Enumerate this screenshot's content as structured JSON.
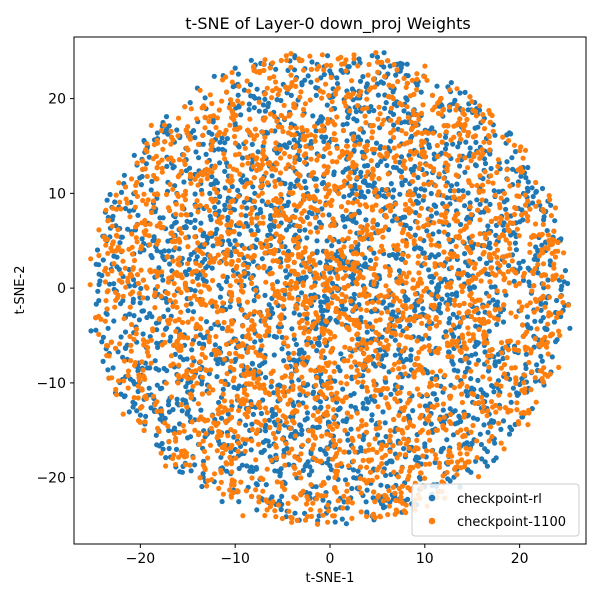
{
  "chart_data": {
    "type": "scatter",
    "title": "t-SNE of Layer-0 down_proj Weights",
    "xlabel": "t-SNE-1",
    "ylabel": "t-SNE-2",
    "xlim": [
      -27,
      27
    ],
    "ylim": [
      -27,
      26.5
    ],
    "xticks": [
      -20,
      -10,
      0,
      10,
      20
    ],
    "yticks": [
      -20,
      -10,
      0,
      10,
      20
    ],
    "grid": false,
    "legend_position": "lower-right",
    "series": [
      {
        "name": "checkpoint-rl",
        "color": "#1f77b4",
        "approx_point_count": 3000,
        "distribution": {
          "center": [
            0,
            0
          ],
          "radius": 25,
          "shape": "disc"
        }
      },
      {
        "name": "checkpoint-1100",
        "color": "#ff7f0e",
        "approx_point_count": 3000,
        "distribution": {
          "center": [
            0,
            0
          ],
          "radius": 25,
          "shape": "disc"
        }
      }
    ]
  }
}
